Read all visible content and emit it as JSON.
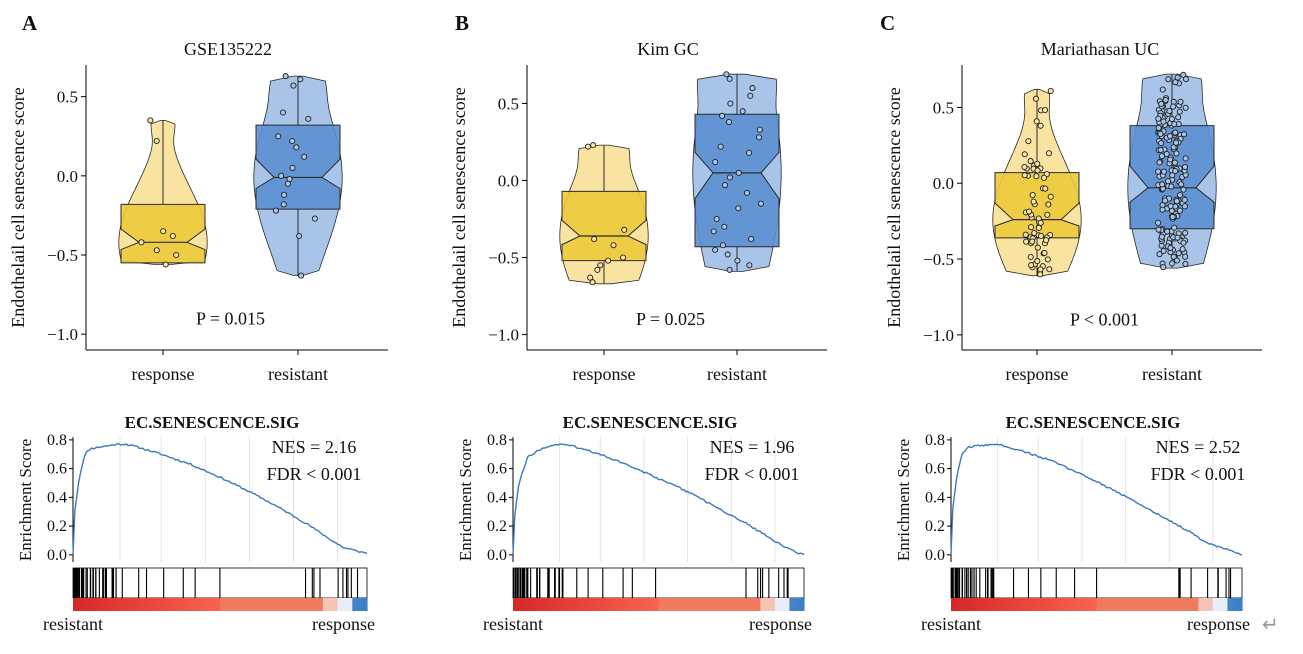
{
  "figure": {
    "return_glyph": "↵"
  },
  "colors": {
    "response_light": "#f8e3a1",
    "response_dark": "#ecc93a",
    "resistant_light": "#a8c4e8",
    "resistant_dark": "#5b8fd0",
    "es_line": "#3a78c2",
    "outline": "#2b2b2b"
  },
  "chart_data": [
    {
      "panel": "A",
      "type": "violin",
      "title": "GSE135222",
      "ylabel": "Endothelail cell senescence score",
      "yticks": [
        0.5,
        0.0,
        -0.5,
        -1.0
      ],
      "ytick_labels": [
        "0.5",
        "0.0",
        "−0.5",
        "−1.0"
      ],
      "ylim": [
        -1.1,
        0.7
      ],
      "categories": [
        "response",
        "resistant"
      ],
      "pvalue": "P = 0.015",
      "groups": [
        {
          "name": "response",
          "q1": -0.55,
          "median": -0.42,
          "q3": -0.18,
          "min": -0.56,
          "max": 0.35,
          "points": [
            0.35,
            0.22,
            -0.35,
            -0.38,
            -0.42,
            -0.47,
            -0.5,
            -0.56
          ]
        },
        {
          "name": "resistant",
          "q1": -0.21,
          "median": -0.01,
          "q3": 0.32,
          "min": -0.63,
          "max": 0.63,
          "points": [
            0.63,
            0.61,
            0.57,
            0.4,
            0.36,
            0.25,
            0.22,
            0.18,
            0.12,
            0.05,
            0.0,
            -0.02,
            -0.05,
            -0.12,
            -0.18,
            -0.22,
            -0.27,
            -0.38,
            -0.63
          ]
        }
      ]
    },
    {
      "panel": "B",
      "type": "violin",
      "title": "Kim GC",
      "ylabel": "Endothelail cell senescence score",
      "yticks": [
        0.5,
        0.0,
        -0.5,
        -1.0
      ],
      "ytick_labels": [
        "0.5",
        "0.0",
        "−0.5",
        "−1.0"
      ],
      "ylim": [
        -1.1,
        0.75
      ],
      "categories": [
        "response",
        "resistant"
      ],
      "pvalue": "P = 0.025",
      "groups": [
        {
          "name": "response",
          "q1": -0.52,
          "median": -0.36,
          "q3": -0.07,
          "min": -0.67,
          "max": 0.23,
          "points": [
            0.23,
            0.22,
            -0.32,
            -0.38,
            -0.42,
            -0.5,
            -0.52,
            -0.55,
            -0.58,
            -0.63,
            -0.66
          ]
        },
        {
          "name": "resistant",
          "q1": -0.43,
          "median": 0.05,
          "q3": 0.43,
          "min": -0.59,
          "max": 0.69,
          "points": [
            0.69,
            0.66,
            0.6,
            0.55,
            0.5,
            0.45,
            0.42,
            0.38,
            0.33,
            0.28,
            0.22,
            0.18,
            0.12,
            0.05,
            0.02,
            -0.03,
            -0.08,
            -0.15,
            -0.18,
            -0.25,
            -0.3,
            -0.33,
            -0.38,
            -0.42,
            -0.45,
            -0.48,
            -0.52,
            -0.55,
            -0.58
          ]
        }
      ]
    },
    {
      "panel": "C",
      "type": "violin",
      "title": "Mariathasan UC",
      "ylabel": "Endothelail cell senescence score",
      "yticks": [
        0.5,
        0.0,
        -0.5,
        -1.0
      ],
      "ytick_labels": [
        "0.5",
        "0.0",
        "−0.5",
        "−1.0"
      ],
      "ylim": [
        -1.1,
        0.78
      ],
      "categories": [
        "response",
        "resistant"
      ],
      "pvalue": "P < 0.001",
      "groups": [
        {
          "name": "response",
          "q1": -0.36,
          "median": -0.24,
          "q3": 0.07,
          "min": -0.61,
          "max": 0.62
        },
        {
          "name": "resistant",
          "q1": -0.3,
          "median": -0.03,
          "q3": 0.38,
          "min": -0.56,
          "max": 0.72
        }
      ]
    },
    {
      "panel": "A",
      "type": "gsea",
      "title": "EC.SENESCENCE.SIG",
      "ylabel": "Enrichment Score",
      "yticks": [
        0.0,
        0.2,
        0.4,
        0.6,
        0.8
      ],
      "ylim": [
        -0.05,
        0.82
      ],
      "nes": "NES = 2.16",
      "fdr": "FDR < 0.001",
      "left_label": "resistant",
      "right_label": "response",
      "es_curve": [
        [
          0,
          0
        ],
        [
          0.005,
          0.28
        ],
        [
          0.02,
          0.52
        ],
        [
          0.04,
          0.7
        ],
        [
          0.06,
          0.74
        ],
        [
          0.09,
          0.75
        ],
        [
          0.12,
          0.76
        ],
        [
          0.15,
          0.77
        ],
        [
          0.18,
          0.77
        ],
        [
          0.22,
          0.75
        ],
        [
          0.3,
          0.7
        ],
        [
          0.4,
          0.63
        ],
        [
          0.5,
          0.54
        ],
        [
          0.6,
          0.44
        ],
        [
          0.7,
          0.33
        ],
        [
          0.8,
          0.21
        ],
        [
          0.88,
          0.1
        ],
        [
          0.92,
          0.05
        ],
        [
          0.96,
          0.03
        ],
        [
          1.0,
          0.01
        ]
      ]
    },
    {
      "panel": "B",
      "type": "gsea",
      "title": "EC.SENESCENCE.SIG",
      "ylabel": "Enrichment Score",
      "yticks": [
        0.0,
        0.2,
        0.4,
        0.6,
        0.8
      ],
      "ylim": [
        -0.05,
        0.82
      ],
      "nes": "NES = 1.96",
      "fdr": "FDR < 0.001",
      "left_label": "resistant",
      "right_label": "response",
      "es_curve": [
        [
          0,
          0
        ],
        [
          0.005,
          0.25
        ],
        [
          0.02,
          0.5
        ],
        [
          0.05,
          0.68
        ],
        [
          0.09,
          0.73
        ],
        [
          0.13,
          0.76
        ],
        [
          0.17,
          0.77
        ],
        [
          0.2,
          0.76
        ],
        [
          0.3,
          0.7
        ],
        [
          0.4,
          0.62
        ],
        [
          0.5,
          0.53
        ],
        [
          0.6,
          0.44
        ],
        [
          0.7,
          0.33
        ],
        [
          0.8,
          0.22
        ],
        [
          0.88,
          0.12
        ],
        [
          0.93,
          0.06
        ],
        [
          0.97,
          0.02
        ],
        [
          1.0,
          0.0
        ]
      ]
    },
    {
      "panel": "C",
      "type": "gsea",
      "title": "EC.SENESCENCE.SIG",
      "ylabel": "Enrichment Score",
      "yticks": [
        0.0,
        0.2,
        0.4,
        0.6,
        0.8
      ],
      "ylim": [
        -0.05,
        0.82
      ],
      "nes": "NES = 2.52",
      "fdr": "FDR < 0.001",
      "left_label": "resistant",
      "right_label": "response",
      "es_curve": [
        [
          0,
          0
        ],
        [
          0.005,
          0.3
        ],
        [
          0.02,
          0.55
        ],
        [
          0.04,
          0.71
        ],
        [
          0.06,
          0.75
        ],
        [
          0.1,
          0.76
        ],
        [
          0.14,
          0.77
        ],
        [
          0.18,
          0.76
        ],
        [
          0.25,
          0.72
        ],
        [
          0.35,
          0.65
        ],
        [
          0.45,
          0.56
        ],
        [
          0.55,
          0.46
        ],
        [
          0.65,
          0.35
        ],
        [
          0.75,
          0.24
        ],
        [
          0.82,
          0.16
        ],
        [
          0.88,
          0.08
        ],
        [
          0.93,
          0.05
        ],
        [
          0.97,
          0.02
        ],
        [
          1.0,
          0.0
        ]
      ]
    }
  ]
}
